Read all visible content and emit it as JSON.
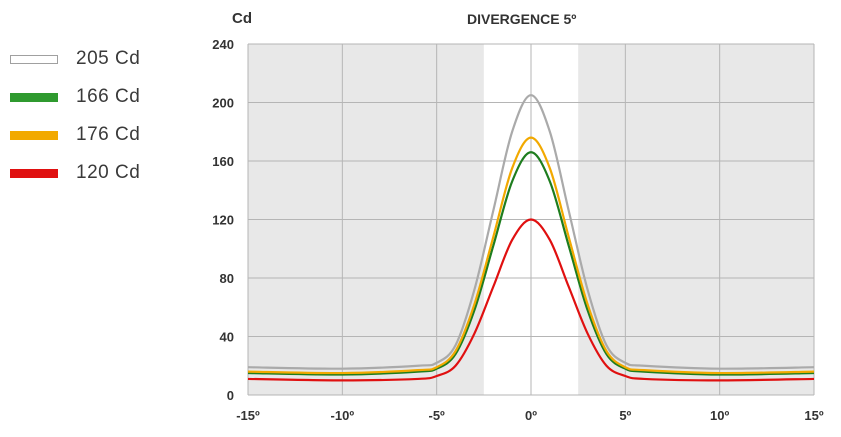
{
  "chart_data": {
    "type": "line",
    "title": "DIVERGENCE 5º",
    "ylabel": "Cd",
    "xlabel": "",
    "xlim": [
      -15,
      15
    ],
    "ylim": [
      0,
      240
    ],
    "x_ticks": [
      -15,
      -10,
      -5,
      0,
      5,
      10,
      15
    ],
    "x_tick_labels": [
      "-15º",
      "-10º",
      "-5º",
      "0º",
      "5º",
      "10º",
      "15º"
    ],
    "y_ticks": [
      0,
      40,
      80,
      120,
      160,
      200,
      240
    ],
    "y_tick_labels": [
      "0",
      "40",
      "80",
      "120",
      "160",
      "200",
      "240"
    ],
    "grid": true,
    "highlight_band": [
      -2.5,
      2.5
    ],
    "legend_position": "left",
    "x": [
      -15,
      -10,
      -6,
      -5,
      -4,
      -3,
      -2,
      -1,
      0,
      1,
      2,
      3,
      4,
      5,
      6,
      10,
      15
    ],
    "series": [
      {
        "name": "205 Cd",
        "color": "#aaaaaa",
        "legend_style": "outline",
        "values": [
          19,
          18,
          20,
          22,
          34,
          72,
          126,
          180,
          205,
          180,
          126,
          72,
          34,
          22,
          20,
          18,
          19
        ]
      },
      {
        "name": "166 Cd",
        "color": "#1e7d1e",
        "legend_style": "fill",
        "values": [
          15,
          14,
          16,
          18,
          28,
          58,
          102,
          146,
          166,
          146,
          102,
          58,
          28,
          18,
          16,
          14,
          15
        ]
      },
      {
        "name": "176 Cd",
        "color": "#f2a900",
        "legend_style": "fill",
        "values": [
          16,
          15,
          17,
          19,
          30,
          62,
          108,
          155,
          176,
          155,
          108,
          62,
          30,
          19,
          17,
          15,
          16
        ]
      },
      {
        "name": "120 Cd",
        "color": "#e01010",
        "legend_style": "fill",
        "values": [
          11,
          10,
          11,
          13,
          20,
          42,
          74,
          106,
          120,
          106,
          74,
          42,
          20,
          13,
          11,
          10,
          11
        ]
      }
    ],
    "colors": {
      "plot_background": "#e8e8e8",
      "band_background": "#ffffff",
      "grid": "#b5b5b5",
      "axis": "#888888",
      "tick_text": "#333333"
    }
  }
}
